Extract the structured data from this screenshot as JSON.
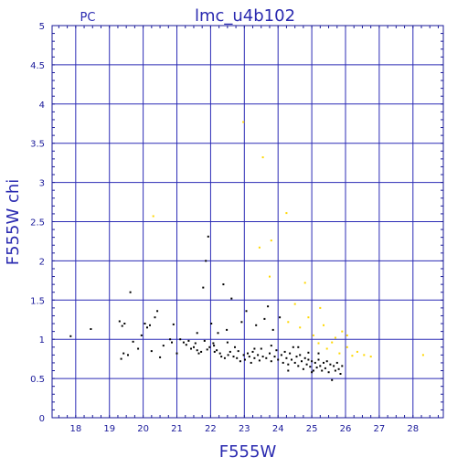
{
  "chart_data": {
    "type": "scatter",
    "title": "lmc_u4b102",
    "corner_label": "PC",
    "xlabel": "F555W",
    "ylabel": "F555W chi",
    "xlim": [
      17.3,
      28.9
    ],
    "ylim": [
      0,
      5
    ],
    "xticks": [
      18,
      19,
      20,
      21,
      22,
      23,
      24,
      25,
      26,
      27,
      28
    ],
    "yticks": [
      0,
      0.5,
      1,
      1.5,
      2,
      2.5,
      3,
      3.5,
      4,
      4.5,
      5
    ],
    "grid": true,
    "colors": {
      "frame": "#1a1a9a",
      "grid": "#2b2bb5",
      "text": "#2a2ab0",
      "series_black": "#000000",
      "series_yellow": "#ffd700"
    },
    "series": [
      {
        "color": "black",
        "points": [
          [
            17.85,
            1.04
          ],
          [
            18.45,
            1.13
          ],
          [
            19.3,
            1.23
          ],
          [
            19.38,
            1.17
          ],
          [
            19.45,
            1.2
          ],
          [
            19.35,
            0.75
          ],
          [
            19.42,
            0.82
          ],
          [
            19.55,
            0.8
          ],
          [
            19.62,
            1.6
          ],
          [
            19.7,
            0.97
          ],
          [
            19.85,
            0.88
          ],
          [
            19.95,
            1.05
          ],
          [
            20.05,
            1.2
          ],
          [
            20.12,
            1.15
          ],
          [
            20.2,
            1.18
          ],
          [
            20.25,
            0.85
          ],
          [
            20.35,
            1.28
          ],
          [
            20.42,
            1.36
          ],
          [
            20.5,
            0.77
          ],
          [
            20.6,
            0.92
          ],
          [
            20.8,
            1.0
          ],
          [
            20.85,
            0.96
          ],
          [
            20.9,
            1.19
          ],
          [
            21.0,
            0.82
          ],
          [
            21.1,
            1.0
          ],
          [
            21.2,
            0.96
          ],
          [
            21.28,
            0.93
          ],
          [
            21.35,
            0.98
          ],
          [
            21.42,
            0.88
          ],
          [
            21.5,
            0.9
          ],
          [
            21.55,
            0.95
          ],
          [
            21.6,
            1.08
          ],
          [
            21.65,
            0.82
          ],
          [
            21.72,
            0.84
          ],
          [
            21.78,
            1.66
          ],
          [
            21.82,
            0.98
          ],
          [
            21.86,
            2.0
          ],
          [
            21.9,
            0.87
          ],
          [
            21.93,
            2.31
          ],
          [
            21.97,
            0.9
          ],
          [
            22.02,
            1.2
          ],
          [
            22.08,
            0.95
          ],
          [
            22.12,
            0.84
          ],
          [
            22.18,
            0.86
          ],
          [
            22.22,
            1.08
          ],
          [
            22.28,
            0.82
          ],
          [
            22.32,
            0.78
          ],
          [
            22.38,
            1.7
          ],
          [
            22.42,
            0.76
          ],
          [
            22.48,
            1.12
          ],
          [
            22.52,
            0.8
          ],
          [
            22.58,
            0.84
          ],
          [
            22.62,
            1.52
          ],
          [
            22.68,
            0.78
          ],
          [
            22.72,
            0.9
          ],
          [
            22.78,
            0.76
          ],
          [
            22.82,
            0.85
          ],
          [
            22.88,
            0.72
          ],
          [
            22.92,
            1.22
          ],
          [
            22.98,
            0.8
          ],
          [
            23.02,
            0.74
          ],
          [
            23.06,
            1.36
          ],
          [
            23.1,
            0.82
          ],
          [
            23.15,
            0.78
          ],
          [
            23.2,
            0.7
          ],
          [
            23.25,
            0.84
          ],
          [
            23.3,
            0.76
          ],
          [
            23.35,
            1.18
          ],
          [
            23.4,
            0.8
          ],
          [
            23.45,
            0.73
          ],
          [
            23.5,
            0.88
          ],
          [
            23.55,
            0.78
          ],
          [
            23.6,
            1.26
          ],
          [
            23.65,
            0.76
          ],
          [
            23.7,
            1.42
          ],
          [
            23.75,
            0.82
          ],
          [
            23.8,
            0.72
          ],
          [
            23.85,
            1.12
          ],
          [
            23.9,
            0.78
          ],
          [
            23.95,
            0.86
          ],
          [
            24.0,
            0.74
          ],
          [
            24.05,
            1.28
          ],
          [
            24.1,
            0.8
          ],
          [
            24.15,
            0.7
          ],
          [
            24.2,
            0.84
          ],
          [
            24.25,
            0.76
          ],
          [
            24.3,
            0.68
          ],
          [
            24.35,
            0.82
          ],
          [
            24.4,
            0.74
          ],
          [
            24.45,
            0.9
          ],
          [
            24.5,
            0.7
          ],
          [
            24.55,
            0.78
          ],
          [
            24.6,
            0.66
          ],
          [
            24.65,
            0.8
          ],
          [
            24.7,
            0.72
          ],
          [
            24.75,
            0.62
          ],
          [
            24.8,
            0.76
          ],
          [
            24.85,
            0.68
          ],
          [
            24.9,
            0.74
          ],
          [
            24.95,
            0.65
          ],
          [
            25.0,
            0.72
          ],
          [
            25.05,
            0.6
          ],
          [
            25.1,
            0.7
          ],
          [
            25.15,
            0.64
          ],
          [
            25.2,
            0.74
          ],
          [
            25.25,
            0.66
          ],
          [
            25.3,
            0.6
          ],
          [
            25.35,
            0.7
          ],
          [
            25.4,
            0.63
          ],
          [
            25.45,
            0.72
          ],
          [
            25.5,
            0.58
          ],
          [
            25.55,
            0.68
          ],
          [
            25.6,
            0.48
          ],
          [
            25.65,
            0.66
          ],
          [
            25.7,
            0.6
          ],
          [
            25.75,
            0.7
          ],
          [
            25.8,
            0.62
          ],
          [
            25.85,
            0.56
          ],
          [
            25.9,
            0.66
          ],
          [
            24.6,
            0.9
          ],
          [
            24.9,
            0.83
          ],
          [
            25.2,
            0.82
          ],
          [
            22.5,
            0.96
          ],
          [
            23.8,
            0.92
          ],
          [
            21.6,
            0.86
          ],
          [
            22.1,
            0.92
          ],
          [
            23.3,
            0.88
          ],
          [
            24.3,
            0.6
          ],
          [
            25.0,
            0.58
          ]
        ]
      },
      {
        "color": "yellow",
        "points": [
          [
            22.97,
            3.77
          ],
          [
            23.55,
            3.32
          ],
          [
            24.25,
            2.61
          ],
          [
            23.8,
            2.26
          ],
          [
            23.45,
            2.17
          ],
          [
            23.75,
            1.8
          ],
          [
            24.5,
            1.45
          ],
          [
            24.8,
            1.72
          ],
          [
            24.3,
            1.22
          ],
          [
            24.65,
            1.15
          ],
          [
            24.9,
            1.28
          ],
          [
            25.05,
            1.05
          ],
          [
            25.2,
            0.95
          ],
          [
            25.35,
            1.18
          ],
          [
            25.45,
            0.88
          ],
          [
            25.6,
            0.96
          ],
          [
            25.7,
            1.02
          ],
          [
            25.82,
            0.82
          ],
          [
            25.9,
            1.1
          ],
          [
            26.05,
            0.9
          ],
          [
            26.2,
            0.79
          ],
          [
            26.35,
            0.84
          ],
          [
            26.55,
            0.8
          ],
          [
            26.75,
            0.78
          ],
          [
            28.3,
            0.8
          ],
          [
            20.3,
            2.57
          ],
          [
            25.25,
            1.4
          ],
          [
            26.05,
            1.05
          ]
        ]
      }
    ]
  }
}
